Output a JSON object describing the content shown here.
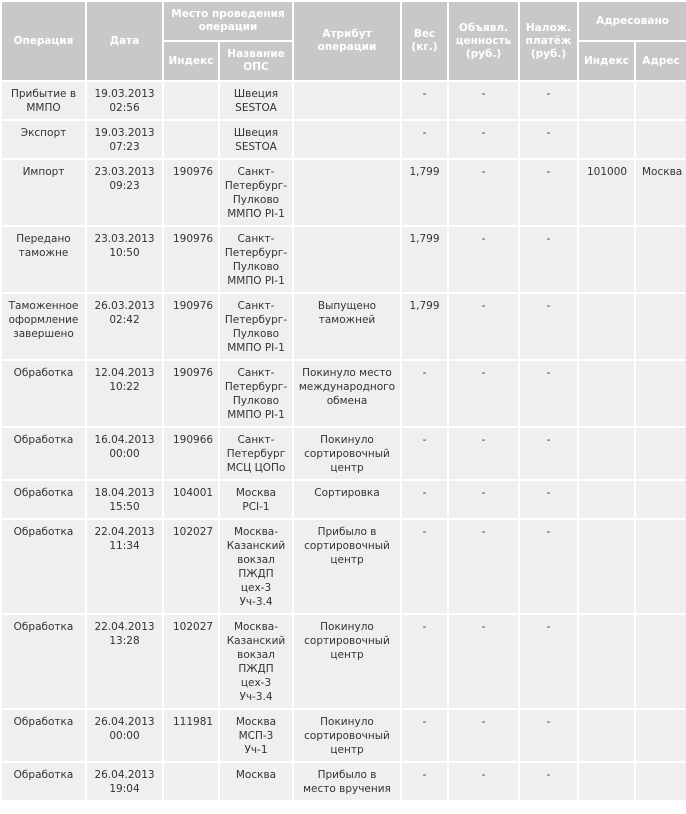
{
  "header": {
    "operation": "Операция",
    "date": "Дата",
    "place": "Место проведения операции",
    "place_index": "Индекс",
    "place_name": "Название ОПС",
    "attribute": "Атрибут операции",
    "weight": "Вес (кг.)",
    "declared_value": "Объявл. ценность (руб.)",
    "cod": "Налож. платёж (руб.)",
    "addressed": "Адресовано",
    "addr_index": "Индекс",
    "addr_address": "Адрес"
  },
  "rows": [
    {
      "operation": "Прибытие в\nММПО",
      "date": "19.03.2013\n02:56",
      "index": "",
      "name": "Швеция\nSESTOA",
      "attribute": "",
      "weight": "-",
      "value": "-",
      "cod": "-",
      "addr_index": "",
      "addr": ""
    },
    {
      "operation": "Экспорт",
      "date": "19.03.2013\n07:23",
      "index": "",
      "name": "Швеция\nSESTOA",
      "attribute": "",
      "weight": "-",
      "value": "-",
      "cod": "-",
      "addr_index": "",
      "addr": ""
    },
    {
      "operation": "Импорт",
      "date": "23.03.2013\n09:23",
      "index": "190976",
      "name": "Санкт-\nПетербург-\nПулково\nММПО PI-1",
      "attribute": "",
      "weight": "1,799",
      "value": "-",
      "cod": "-",
      "addr_index": "101000",
      "addr": "Москва"
    },
    {
      "operation": "Передано\nтаможне",
      "date": "23.03.2013\n10:50",
      "index": "190976",
      "name": "Санкт-\nПетербург-\nПулково\nММПО PI-1",
      "attribute": "",
      "weight": "1,799",
      "value": "-",
      "cod": "-",
      "addr_index": "",
      "addr": ""
    },
    {
      "operation": "Таможенное\nоформление\nзавершено",
      "date": "26.03.2013\n02:42",
      "index": "190976",
      "name": "Санкт-\nПетербург-\nПулково\nММПО PI-1",
      "attribute": "Выпущено\nтаможней",
      "weight": "1,799",
      "value": "-",
      "cod": "-",
      "addr_index": "",
      "addr": ""
    },
    {
      "operation": "Обработка",
      "date": "12.04.2013\n10:22",
      "index": "190976",
      "name": "Санкт-\nПетербург-\nПулково\nММПО PI-1",
      "attribute": "Покинуло место\nмеждународного\nобмена",
      "weight": "-",
      "value": "-",
      "cod": "-",
      "addr_index": "",
      "addr": ""
    },
    {
      "operation": "Обработка",
      "date": "16.04.2013\n00:00",
      "index": "190966",
      "name": "Санкт-\nПетербург\nМСЦ ЦОПо",
      "attribute": "Покинуло\nсортировочный\nцентр",
      "weight": "-",
      "value": "-",
      "cod": "-",
      "addr_index": "",
      "addr": ""
    },
    {
      "operation": "Обработка",
      "date": "18.04.2013\n15:50",
      "index": "104001",
      "name": "Москва\nPCI-1",
      "attribute": "Сортировка",
      "weight": "-",
      "value": "-",
      "cod": "-",
      "addr_index": "",
      "addr": ""
    },
    {
      "operation": "Обработка",
      "date": "22.04.2013\n11:34",
      "index": "102027",
      "name": "Москва-\nКазанский\nвокзал\nПЖДП\nцех-3\nУч-3.4",
      "attribute": "Прибыло в\nсортировочный\nцентр",
      "weight": "-",
      "value": "-",
      "cod": "-",
      "addr_index": "",
      "addr": ""
    },
    {
      "operation": "Обработка",
      "date": "22.04.2013\n13:28",
      "index": "102027",
      "name": "Москва-\nКазанский\nвокзал\nПЖДП\nцех-3\nУч-3.4",
      "attribute": "Покинуло\nсортировочный\nцентр",
      "weight": "-",
      "value": "-",
      "cod": "-",
      "addr_index": "",
      "addr": ""
    },
    {
      "operation": "Обработка",
      "date": "26.04.2013\n00:00",
      "index": "111981",
      "name": "Москва\nМСП-3\nУч-1",
      "attribute": "Покинуло\nсортировочный\nцентр",
      "weight": "-",
      "value": "-",
      "cod": "-",
      "addr_index": "",
      "addr": ""
    },
    {
      "operation": "Обработка",
      "date": "26.04.2013\n19:04",
      "index": "",
      "name": "Москва",
      "attribute": "Прибыло в\nместо вручения",
      "weight": "-",
      "value": "-",
      "cod": "-",
      "addr_index": "",
      "addr": ""
    }
  ]
}
